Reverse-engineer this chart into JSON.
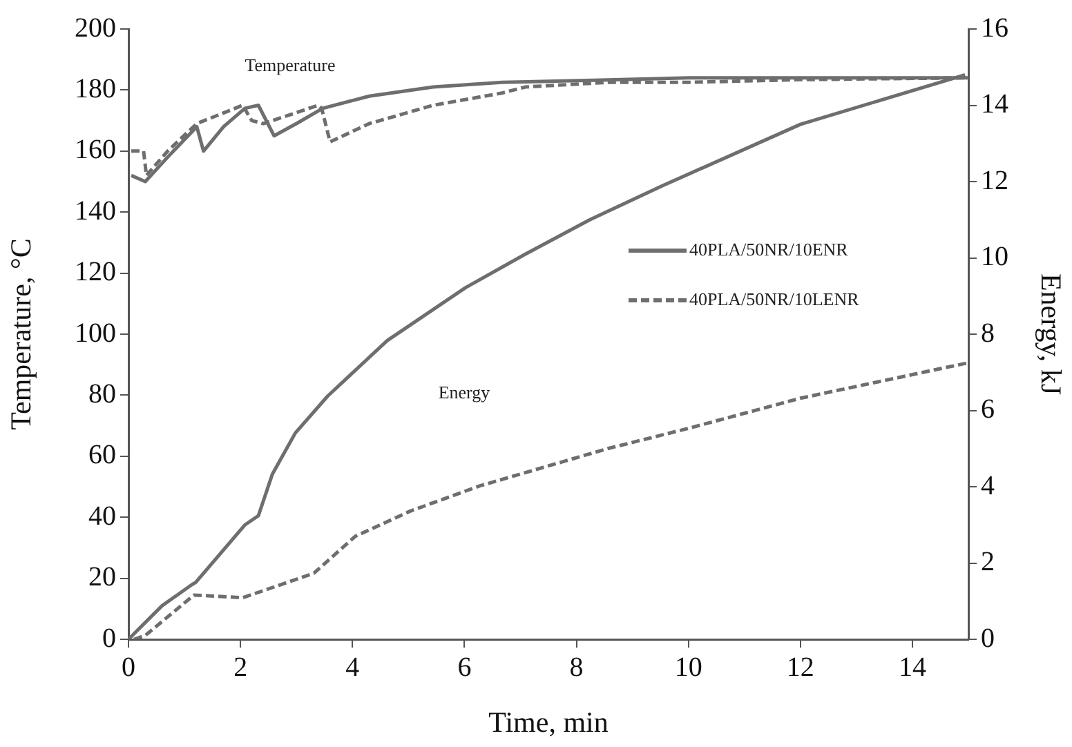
{
  "chart_data": {
    "type": "line",
    "xlabel": "Time, min",
    "ylabel": "Temperature, °C",
    "y2label": "Energy, kJ",
    "xlim": [
      0,
      15
    ],
    "xticks": [
      0,
      2,
      4,
      6,
      8,
      10,
      12,
      14
    ],
    "ylim": [
      0,
      200
    ],
    "yticks": [
      0,
      20,
      40,
      60,
      80,
      100,
      120,
      140,
      160,
      180,
      200
    ],
    "y2lim": [
      0,
      16
    ],
    "y2ticks": [
      0,
      2,
      4,
      6,
      8,
      10,
      12,
      14,
      16
    ],
    "grid": false,
    "legend": "right",
    "marker": "none",
    "annotations": [
      "Temperature",
      "Energy"
    ],
    "series": [
      {
        "name": "40PLA/50NR/10ENR",
        "color": "#6e6e6e",
        "line_style": "solid",
        "x": [
          0.05,
          0.3,
          0.7,
          1.22,
          1.34,
          1.7,
          2.08,
          2.32,
          2.6,
          3.0,
          3.47,
          4.3,
          5.44,
          6.67,
          8.56,
          10,
          12,
          15
        ],
        "values": [
          152,
          150,
          158,
          168,
          160,
          168,
          174,
          175,
          165,
          169,
          174,
          178,
          181,
          182.5,
          183.3,
          184,
          184,
          184
        ]
      },
      {
        "name": "40PLA/50NR/10LENR",
        "color": "#6e6e6e",
        "line_style": "dashed",
        "x": [
          0.05,
          0.27,
          0.32,
          0.7,
          1.22,
          2.04,
          2.2,
          2.41,
          3.39,
          3.45,
          3.6,
          4.3,
          5.44,
          6.67,
          7.09,
          8.56,
          9.96,
          12,
          15
        ],
        "values": [
          160,
          160,
          152,
          160,
          169,
          175,
          170,
          169,
          175,
          174,
          163,
          169,
          175,
          179,
          181,
          182.5,
          182.5,
          183.4,
          184
        ]
      },
      {
        "color": "#6e6e6e",
        "line_style": "solid",
        "axis": "y2",
        "x": [
          0,
          0.6,
          1.13,
          1.2,
          2.08,
          2.32,
          2.57,
          2.98,
          3.56,
          4.62,
          6.02,
          7.09,
          8.24,
          9.55,
          12,
          14.94
        ],
        "values": [
          0,
          0.88,
          1.43,
          1.49,
          3.0,
          3.24,
          4.33,
          5.41,
          6.38,
          7.83,
          9.22,
          10.1,
          11.0,
          11.9,
          13.5,
          14.8
        ]
      },
      {
        "color": "#6e6e6e",
        "line_style": "dashed",
        "axis": "y2",
        "x": [
          0.1,
          0.3,
          1.17,
          2.04,
          3.31,
          4.05,
          5.03,
          6.27,
          8.56,
          10,
          12,
          15
        ],
        "values": [
          0,
          0.1,
          1.16,
          1.09,
          1.73,
          2.7,
          3.36,
          4.02,
          5.0,
          5.53,
          6.32,
          7.25
        ]
      }
    ]
  }
}
